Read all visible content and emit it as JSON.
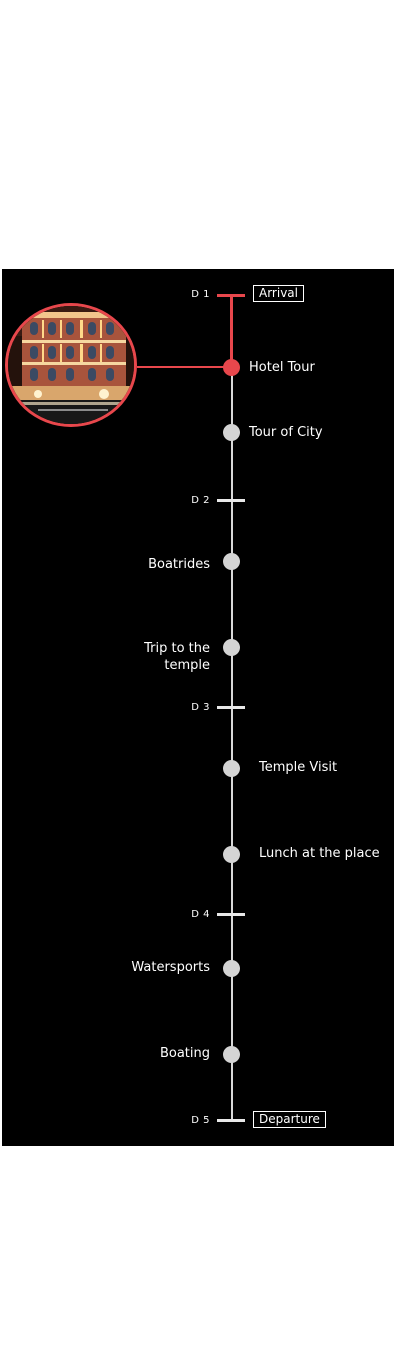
{
  "colors": {
    "accent": "#e8474c",
    "line": "#d9d9d9",
    "background": "#000000"
  },
  "days": [
    {
      "label": "D 1"
    },
    {
      "label": "D 2"
    },
    {
      "label": "D 3"
    },
    {
      "label": "D 4"
    },
    {
      "label": "D 5"
    }
  ],
  "start_badge": "Arrival",
  "end_badge": "Departure",
  "events": [
    {
      "label": "Hotel Tour",
      "highlighted": true
    },
    {
      "label": "Tour of City"
    },
    {
      "label": "Boatrides"
    },
    {
      "label": "Trip to the temple"
    },
    {
      "label": "Temple Visit"
    },
    {
      "label": "Lunch at the place"
    },
    {
      "label": "Watersports"
    },
    {
      "label": "Boating"
    }
  ],
  "photo": {
    "icon": "hotel-photo"
  }
}
